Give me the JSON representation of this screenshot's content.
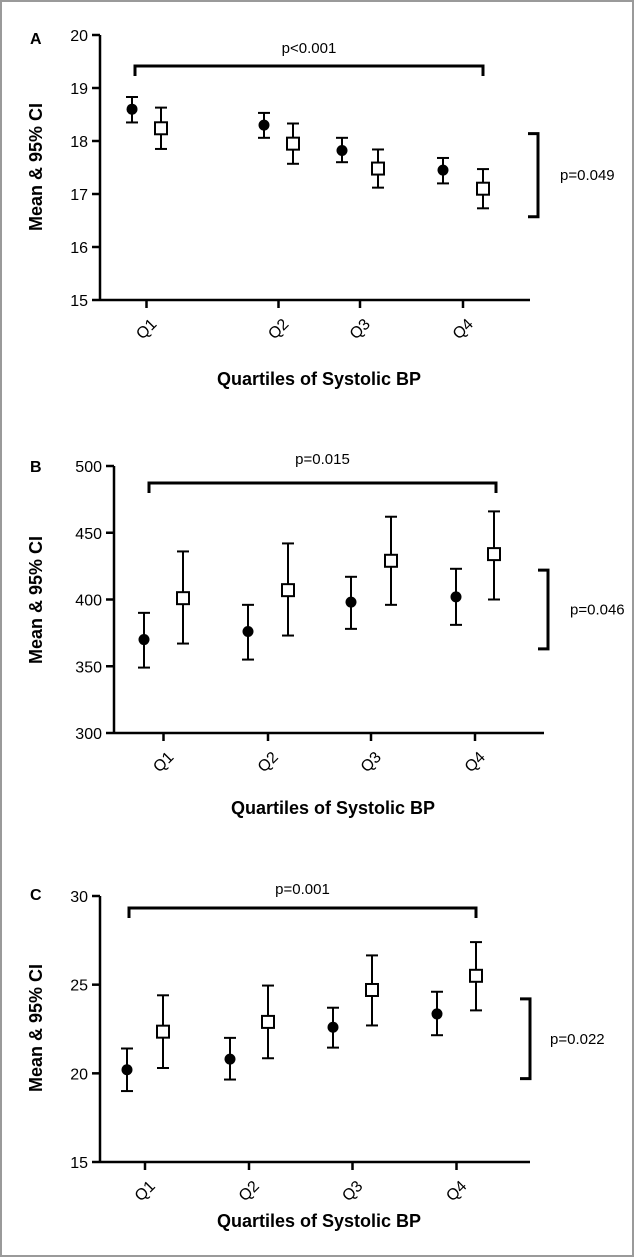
{
  "chart_data": [
    {
      "type": "scatter",
      "panel": "A",
      "ylabel": "Mean & 95% CI",
      "xlabel": "Quartiles of Systolic BP",
      "categories": [
        "Q1",
        "Q2",
        "Q3",
        "Q4"
      ],
      "ylim": [
        15,
        20
      ],
      "yticks": [
        15,
        16,
        17,
        18,
        19,
        20
      ],
      "series": [
        {
          "marker": "filled-circle",
          "values": [
            18.6,
            18.3,
            17.82,
            17.45
          ],
          "ci_low": [
            18.35,
            18.06,
            17.6,
            17.2
          ],
          "ci_high": [
            18.83,
            18.53,
            18.06,
            17.68
          ]
        },
        {
          "marker": "open-square",
          "values": [
            18.24,
            17.95,
            17.48,
            17.1
          ],
          "ci_low": [
            17.85,
            17.57,
            17.12,
            16.73
          ],
          "ci_high": [
            18.63,
            18.33,
            17.84,
            17.47
          ]
        }
      ],
      "annotations": {
        "top": "p<0.001",
        "right": "p=0.049",
        "right_range": [
          16.57,
          18.14
        ]
      }
    },
    {
      "type": "scatter",
      "panel": "B",
      "ylabel": "Mean & 95% CI",
      "xlabel": "Quartiles of Systolic BP",
      "categories": [
        "Q1",
        "Q2",
        "Q3",
        "Q4"
      ],
      "ylim": [
        300,
        500
      ],
      "yticks": [
        300,
        350,
        400,
        450,
        500
      ],
      "series": [
        {
          "marker": "filled-circle",
          "values": [
            370,
            376,
            398,
            402
          ],
          "ci_low": [
            349,
            355,
            378,
            381
          ],
          "ci_high": [
            390,
            396,
            417,
            423
          ]
        },
        {
          "marker": "open-square",
          "values": [
            401,
            407,
            429,
            434
          ],
          "ci_low": [
            367,
            373,
            396,
            400
          ],
          "ci_high": [
            436,
            442,
            462,
            466
          ]
        }
      ],
      "annotations": {
        "top": "p=0.015",
        "right": "p=0.046",
        "right_range": [
          363,
          422
        ]
      }
    },
    {
      "type": "scatter",
      "panel": "C",
      "ylabel": "Mean & 95% CI",
      "xlabel": "Quartiles of Systolic BP",
      "categories": [
        "Q1",
        "Q2",
        "Q3",
        "Q4"
      ],
      "ylim": [
        15,
        30
      ],
      "yticks": [
        15,
        20,
        25,
        30
      ],
      "series": [
        {
          "marker": "filled-circle",
          "values": [
            20.2,
            20.8,
            22.6,
            23.35
          ],
          "ci_low": [
            19.0,
            19.65,
            21.45,
            22.15
          ],
          "ci_high": [
            21.4,
            22.0,
            23.7,
            24.6
          ]
        },
        {
          "marker": "open-square",
          "values": [
            22.35,
            22.9,
            24.7,
            25.5
          ],
          "ci_low": [
            20.3,
            20.85,
            22.7,
            23.55
          ],
          "ci_high": [
            24.4,
            24.95,
            26.65,
            27.4
          ]
        }
      ],
      "annotations": {
        "top": "p=0.001",
        "right": "p=0.022",
        "right_range": [
          19.7,
          24.2
        ]
      }
    }
  ]
}
